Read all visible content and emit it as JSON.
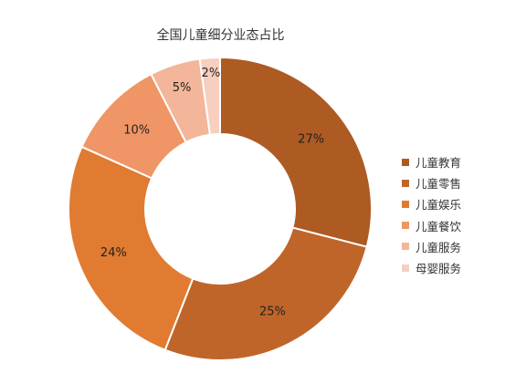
{
  "chart_data": {
    "type": "pie",
    "title": "全国儿童细分业态占比",
    "categories": [
      "儿童教育",
      "儿童零售",
      "儿童娱乐",
      "儿童餐饮",
      "儿童服务",
      "母婴服务"
    ],
    "values": [
      27,
      25,
      24,
      10,
      5,
      2
    ],
    "data_labels": [
      "27%",
      "25%",
      "24%",
      "10%",
      "5%",
      "2%"
    ],
    "colors": [
      "#ad5a23",
      "#c0652a",
      "#e07b31",
      "#ef9566",
      "#f3b69a",
      "#f6cfbf"
    ],
    "donut": true,
    "legend_position": "right"
  }
}
